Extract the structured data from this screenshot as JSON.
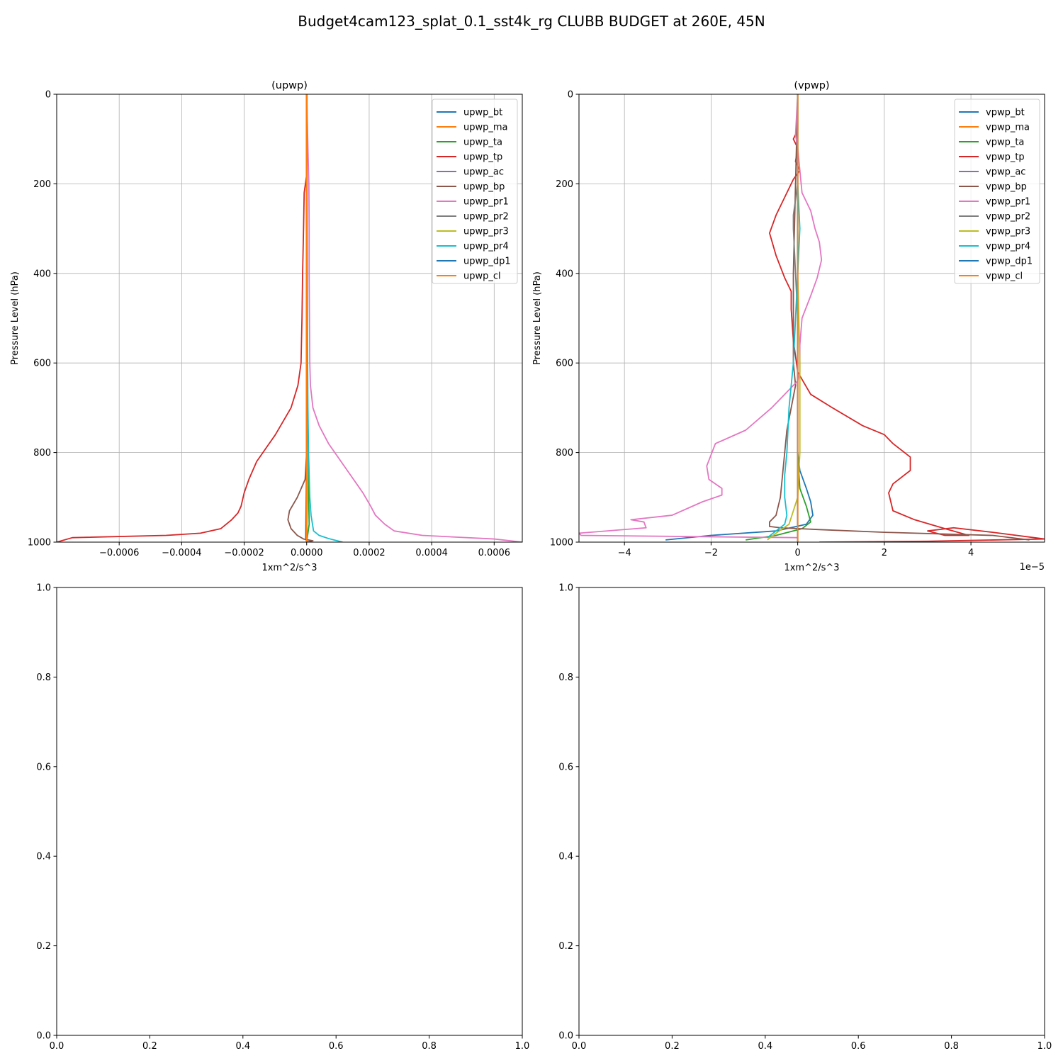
{
  "suptitle": "Budget4cam123_splat_0.1_sst4k_rg CLUBB BUDGET at 260E, 45N",
  "chart_data": [
    {
      "type": "line",
      "title": "(upwp)",
      "xlabel": "1xm^2/s^3",
      "ylabel": "Pressure Level (hPa)",
      "xlim": [
        -0.0008,
        0.00069
      ],
      "ylim": [
        1000,
        0
      ],
      "y_inverted": true,
      "grid": true,
      "legend_position": "upper-right",
      "x_tick_values": [
        -0.0006,
        -0.0004,
        -0.0002,
        0.0,
        0.0002,
        0.0004,
        0.0006
      ],
      "x_tick_labels": [
        "−0.0006",
        "−0.0004",
        "−0.0002",
        "0.0000",
        "0.0002",
        "0.0004",
        "0.0006"
      ],
      "y_tick_values": [
        0,
        200,
        400,
        600,
        800,
        1000
      ],
      "y_tick_labels": [
        "0",
        "200",
        "400",
        "600",
        "800",
        "1000"
      ],
      "series": [
        {
          "name": "upwp_bt",
          "color": "#1f77b4",
          "x": [
            0,
            0,
            0,
            0,
            0,
            0,
            0,
            0,
            0,
            0,
            0
          ],
          "y": [
            0,
            100,
            200,
            300,
            400,
            500,
            600,
            700,
            800,
            900,
            1000
          ]
        },
        {
          "name": "upwp_ma",
          "color": "#ff7f0e",
          "x": [
            0,
            0,
            0,
            0,
            0,
            0,
            0,
            0,
            0,
            0,
            0
          ],
          "y": [
            0,
            100,
            200,
            300,
            400,
            500,
            600,
            700,
            800,
            900,
            1000
          ]
        },
        {
          "name": "upwp_ta",
          "color": "#2ca02c",
          "x": [
            0,
            0,
            0,
            0,
            0,
            0,
            0,
            1e-06,
            4e-06,
            8e-06,
            0
          ],
          "y": [
            0,
            100,
            200,
            300,
            400,
            500,
            600,
            700,
            800,
            960,
            1000
          ]
        },
        {
          "name": "upwp_tp",
          "color": "#d62728",
          "x": [
            1e-06,
            1e-06,
            0,
            -8e-06,
            -1e-05,
            -1.3e-05,
            -1.5e-05,
            -1.8e-05,
            -2.8e-05,
            -5e-05,
            -0.0001,
            -0.00016,
            -0.000185,
            -0.0002,
            -0.00021,
            -0.00022,
            -0.00024,
            -0.000275,
            -0.00034,
            -0.00045,
            -0.00075,
            -0.0008
          ],
          "y": [
            0,
            100,
            180,
            220,
            300,
            400,
            500,
            600,
            650,
            700,
            760,
            820,
            860,
            890,
            920,
            935,
            950,
            970,
            980,
            985,
            990,
            1000
          ]
        },
        {
          "name": "upwp_ac",
          "color": "#9467bd",
          "x": [
            0,
            0,
            0,
            0,
            0,
            0,
            0,
            0,
            0,
            0,
            0
          ],
          "y": [
            0,
            100,
            200,
            300,
            400,
            500,
            600,
            700,
            800,
            900,
            1000
          ]
        },
        {
          "name": "upwp_bp",
          "color": "#8c564b",
          "x": [
            0,
            0,
            0,
            0,
            0,
            -5e-06,
            -3e-05,
            -5.5e-05,
            -6e-05,
            -5e-05,
            -3e-05,
            -1e-05,
            2e-05,
            0
          ],
          "y": [
            0,
            200,
            400,
            600,
            800,
            860,
            900,
            930,
            950,
            970,
            985,
            993,
            997,
            1000
          ]
        },
        {
          "name": "upwp_pr1",
          "color": "#e377c2",
          "x": [
            0,
            5e-06,
            7e-06,
            8e-06,
            8e-06,
            9e-06,
            1e-05,
            1.2e-05,
            2e-05,
            4e-05,
            7e-05,
            0.00011,
            0.00015,
            0.00018,
            0.000205,
            0.00022,
            0.00025,
            0.00028,
            0.00037,
            0.0006,
            0.00069
          ],
          "y": [
            0,
            150,
            200,
            300,
            400,
            500,
            600,
            650,
            700,
            740,
            780,
            820,
            860,
            890,
            920,
            940,
            960,
            975,
            985,
            993,
            1000
          ]
        },
        {
          "name": "upwp_pr2",
          "color": "#7f7f7f",
          "x": [
            0,
            0,
            0,
            0,
            0,
            0,
            0,
            0,
            0,
            0,
            0
          ],
          "y": [
            0,
            100,
            200,
            300,
            400,
            500,
            600,
            700,
            800,
            900,
            1000
          ]
        },
        {
          "name": "upwp_pr3",
          "color": "#bcbd22",
          "x": [
            0,
            0,
            0,
            0,
            0,
            0,
            0,
            0,
            2e-06,
            3e-06,
            0
          ],
          "y": [
            0,
            100,
            200,
            300,
            400,
            500,
            600,
            700,
            800,
            900,
            1000
          ]
        },
        {
          "name": "upwp_pr4",
          "color": "#17becf",
          "x": [
            0,
            1e-06,
            2e-06,
            3e-06,
            4e-06,
            6e-06,
            1e-05,
            1.4e-05,
            2.2e-05,
            4e-05,
            7e-05,
            0.000115
          ],
          "y": [
            0,
            200,
            400,
            600,
            700,
            800,
            900,
            940,
            975,
            985,
            992,
            1000
          ]
        },
        {
          "name": "upwp_dp1",
          "color": "#1f77b4",
          "x": [
            0,
            0,
            0,
            0,
            0,
            0,
            0,
            0,
            0,
            -3e-06,
            0
          ],
          "y": [
            0,
            100,
            200,
            300,
            400,
            500,
            600,
            700,
            800,
            990,
            1000
          ]
        },
        {
          "name": "upwp_cl",
          "color": "#ff7f0e",
          "x": [
            0,
            0,
            0,
            0,
            0,
            0,
            0,
            0,
            0,
            0,
            0
          ],
          "y": [
            0,
            100,
            200,
            300,
            400,
            500,
            600,
            700,
            800,
            900,
            1000
          ]
        }
      ]
    },
    {
      "type": "line",
      "title": "(vpwp)",
      "xlabel": "1xm^2/s^3",
      "ylabel": "Pressure Level (hPa)",
      "x_offset_label": "1e−5",
      "xlim": [
        -5.05,
        5.7
      ],
      "ylim": [
        1000,
        0
      ],
      "y_inverted": true,
      "grid": true,
      "legend_position": "upper-right",
      "x_tick_values": [
        -4,
        -2,
        0,
        2,
        4
      ],
      "x_tick_labels": [
        "−4",
        "−2",
        "0",
        "2",
        "4"
      ],
      "y_tick_values": [
        0,
        200,
        400,
        600,
        800,
        1000
      ],
      "y_tick_labels": [
        "0",
        "200",
        "400",
        "600",
        "800",
        "1000"
      ],
      "series": [
        {
          "name": "vpwp_bt",
          "color": "#1f77b4",
          "x": [
            0,
            0,
            0,
            0,
            0,
            0,
            0.05,
            0.2,
            0.3,
            0.35,
            0.2,
            -0.5,
            -2,
            -3.05
          ],
          "y": [
            0,
            200,
            400,
            600,
            700,
            800,
            840,
            880,
            910,
            940,
            960,
            975,
            985,
            995
          ]
        },
        {
          "name": "vpwp_ma",
          "color": "#ff7f0e",
          "x": [
            0,
            0,
            0,
            0,
            0,
            0,
            0,
            0,
            0,
            0
          ],
          "y": [
            0,
            200,
            400,
            600,
            800,
            900,
            950,
            980,
            990,
            1000
          ]
        },
        {
          "name": "vpwp_ta",
          "color": "#2ca02c",
          "x": [
            0,
            0,
            0,
            0,
            0,
            0.05,
            0.2,
            0.3,
            0.1,
            -0.5,
            -1.2
          ],
          "y": [
            0,
            200,
            400,
            600,
            800,
            880,
            920,
            955,
            970,
            985,
            995
          ]
        },
        {
          "name": "vpwp_tp",
          "color": "#d62728",
          "x": [
            0,
            0,
            -0.1,
            0,
            -0.05,
            0.05,
            -0.1,
            -0.3,
            -0.5,
            -0.65,
            -0.5,
            -0.3,
            -0.15,
            -0.15,
            -0.1,
            0,
            0.3,
            0.8,
            1.5,
            2,
            2.2,
            2.6,
            2.6,
            2.2,
            2.1,
            2.2,
            2.7,
            3.4,
            3.95,
            3.4,
            3.0,
            3.6,
            4.5,
            5.7,
            3.0,
            0.5
          ],
          "y": [
            0,
            80,
            100,
            120,
            150,
            170,
            190,
            230,
            270,
            310,
            360,
            410,
            440,
            480,
            550,
            620,
            670,
            700,
            740,
            760,
            780,
            810,
            840,
            870,
            890,
            930,
            950,
            970,
            985,
            985,
            975,
            968,
            978,
            993,
            998,
            1000
          ]
        },
        {
          "name": "vpwp_ac",
          "color": "#9467bd",
          "x": [
            0,
            0,
            0,
            0,
            0,
            0,
            0,
            0,
            0,
            0
          ],
          "y": [
            0,
            200,
            400,
            600,
            800,
            900,
            950,
            980,
            990,
            1000
          ]
        },
        {
          "name": "vpwp_bp",
          "color": "#8c564b",
          "x": [
            0,
            -0.05,
            -0.1,
            -0.1,
            -0.05,
            -0.15,
            -0.25,
            -0.3,
            -0.35,
            -0.4,
            -0.45,
            -0.5,
            -0.65,
            -0.65,
            -0.4,
            0.5,
            2.0,
            4.5,
            5.35
          ],
          "y": [
            0,
            200,
            400,
            600,
            650,
            700,
            750,
            800,
            850,
            900,
            920,
            940,
            955,
            965,
            968,
            972,
            978,
            985,
            995
          ]
        },
        {
          "name": "vpwp_pr1",
          "color": "#e377c2",
          "x": [
            0,
            -0.05,
            0,
            0.05,
            0.1,
            0.3,
            0.4,
            0.5,
            0.55,
            0.45,
            0.3,
            0.1,
            0.05,
            0.05,
            0,
            -0.3,
            -0.6,
            -1.2,
            -1.9,
            -2.1,
            -2.05,
            -1.75,
            -1.75,
            -2.2,
            -2.9,
            -3.85,
            -3.55,
            -3.5,
            -5.05,
            -5.0,
            -2.0,
            0
          ],
          "y": [
            0,
            90,
            120,
            170,
            220,
            260,
            300,
            330,
            370,
            410,
            450,
            500,
            560,
            620,
            640,
            670,
            700,
            750,
            780,
            830,
            860,
            880,
            895,
            910,
            940,
            950,
            955,
            968,
            980,
            985,
            988,
            990
          ]
        },
        {
          "name": "vpwp_pr2",
          "color": "#7f7f7f",
          "x": [
            0,
            0,
            -0.1,
            -0.1,
            -0.05,
            0,
            0,
            0,
            0,
            0
          ],
          "y": [
            0,
            200,
            270,
            300,
            400,
            500,
            600,
            800,
            900,
            1000
          ]
        },
        {
          "name": "vpwp_pr3",
          "color": "#bcbd22",
          "x": [
            0,
            0,
            0,
            0.05,
            0.05,
            0.05,
            0,
            -0.2,
            -0.5,
            -0.7
          ],
          "y": [
            0,
            200,
            400,
            600,
            700,
            800,
            900,
            960,
            980,
            995
          ]
        },
        {
          "name": "vpwp_pr4",
          "color": "#17becf",
          "x": [
            0,
            0,
            0.05,
            0,
            -0.1,
            -0.2,
            -0.25,
            -0.3,
            -0.3,
            -0.25,
            -0.3,
            -0.7
          ],
          "y": [
            0,
            200,
            300,
            400,
            600,
            700,
            800,
            850,
            900,
            940,
            960,
            990
          ]
        },
        {
          "name": "vpwp_dp1",
          "color": "#1f77b4",
          "x": [
            0,
            0,
            0,
            0,
            0,
            0,
            0,
            0,
            0,
            0
          ],
          "y": [
            0,
            200,
            400,
            600,
            800,
            900,
            950,
            980,
            990,
            1000
          ]
        },
        {
          "name": "vpwp_cl",
          "color": "#ff7f0e",
          "x": [
            0,
            0,
            0,
            0,
            0,
            0,
            0,
            0,
            0,
            0
          ],
          "y": [
            0,
            200,
            400,
            600,
            800,
            900,
            950,
            980,
            990,
            1000
          ]
        }
      ]
    },
    {
      "type": "line",
      "title": "",
      "xlim": [
        0,
        1
      ],
      "ylim": [
        0,
        1
      ],
      "grid": false,
      "x_tick_values": [
        0,
        0.2,
        0.4,
        0.6,
        0.8,
        1.0
      ],
      "x_tick_labels": [
        "0.0",
        "0.2",
        "0.4",
        "0.6",
        "0.8",
        "1.0"
      ],
      "y_tick_values": [
        0,
        0.2,
        0.4,
        0.6,
        0.8,
        1.0
      ],
      "y_tick_labels": [
        "0.0",
        "0.2",
        "0.4",
        "0.6",
        "0.8",
        "1.0"
      ],
      "series": []
    },
    {
      "type": "line",
      "title": "",
      "xlim": [
        0,
        1
      ],
      "ylim": [
        0,
        1
      ],
      "grid": false,
      "x_tick_values": [
        0,
        0.2,
        0.4,
        0.6,
        0.8,
        1.0
      ],
      "x_tick_labels": [
        "0.0",
        "0.2",
        "0.4",
        "0.6",
        "0.8",
        "1.0"
      ],
      "y_tick_values": [
        0,
        0.2,
        0.4,
        0.6,
        0.8,
        1.0
      ],
      "y_tick_labels": [
        "0.0",
        "0.2",
        "0.4",
        "0.6",
        "0.8",
        "1.0"
      ],
      "series": []
    }
  ]
}
